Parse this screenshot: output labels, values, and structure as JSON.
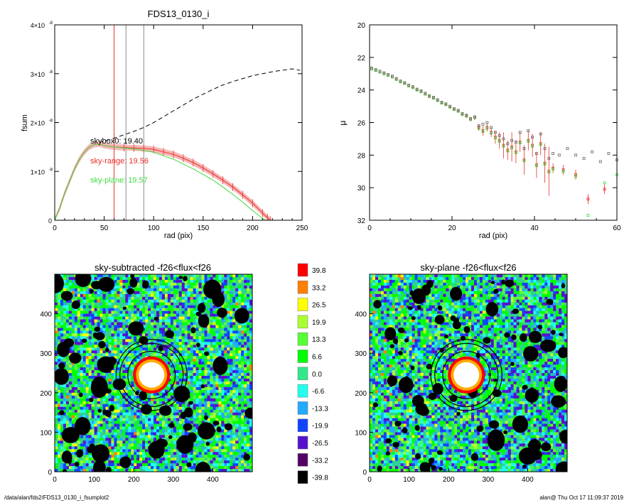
{
  "chart_data": [
    {
      "type": "line",
      "title": "FDS13_0130_i",
      "xlabel": "rad (pix)",
      "ylabel": "fsum",
      "xlim": [
        0,
        250
      ],
      "ylim": [
        0,
        4e-08
      ],
      "xticks": [
        "0",
        "50",
        "100",
        "150",
        "200",
        "250"
      ],
      "yticks": [
        {
          "v": 0,
          "label": "0"
        },
        {
          "v": 1e-08,
          "label": "1×10",
          "exp": "-8"
        },
        {
          "v": 2e-08,
          "label": "2×10",
          "exp": "-8"
        },
        {
          "v": 3e-08,
          "label": "3×10",
          "exp": "-8"
        },
        {
          "v": 4e-08,
          "label": "4×10",
          "exp": "-8"
        }
      ],
      "vlines": [
        {
          "x": 60,
          "color": "#e8302a"
        },
        {
          "x": 72,
          "color": "#8a8a8a"
        },
        {
          "x": 90,
          "color": "#8a8a8a"
        }
      ],
      "annotations": [
        {
          "text": "skybox0: 19.40",
          "color": "#000000"
        },
        {
          "text": "sky-range: 19.56",
          "color": "#e8302a"
        },
        {
          "text": "sky-plane: 19.57",
          "color": "#3ddc3d"
        }
      ],
      "series": [
        {
          "style": "dashed",
          "color": "#000000",
          "x": [
            0,
            5,
            10,
            15,
            20,
            25,
            30,
            35,
            40,
            45,
            50,
            60,
            70,
            80,
            90,
            100,
            110,
            120,
            130,
            140,
            150,
            160,
            170,
            180,
            190,
            200,
            210,
            220,
            230,
            240,
            248
          ],
          "y": [
            0,
            2.5e-09,
            5.5e-09,
            8e-09,
            1.05e-08,
            1.25e-08,
            1.4e-08,
            1.5e-08,
            1.56e-08,
            1.6e-08,
            1.62e-08,
            1.68e-08,
            1.75e-08,
            1.82e-08,
            1.9e-08,
            2e-08,
            2.12e-08,
            2.24e-08,
            2.36e-08,
            2.48e-08,
            2.58e-08,
            2.68e-08,
            2.77e-08,
            2.84e-08,
            2.9e-08,
            2.96e-08,
            3e-08,
            3.04e-08,
            3.07e-08,
            3.1e-08,
            3.07e-08
          ]
        },
        {
          "style": "solid",
          "color": "#e8302a",
          "band": true,
          "x": [
            0,
            5,
            10,
            15,
            20,
            25,
            30,
            35,
            40,
            45,
            50,
            60,
            70,
            80,
            90,
            100,
            110,
            120,
            130,
            140,
            150,
            160,
            170,
            180,
            190,
            200,
            210,
            215,
            218
          ],
          "y": [
            0,
            2.5e-09,
            5.5e-09,
            8e-09,
            1.05e-08,
            1.25e-08,
            1.4e-08,
            1.5e-08,
            1.55e-08,
            1.56e-08,
            1.53e-08,
            1.5e-08,
            1.49e-08,
            1.48e-08,
            1.47e-08,
            1.45e-08,
            1.4e-08,
            1.35e-08,
            1.27e-08,
            1.18e-08,
            1.07e-08,
            9.5e-09,
            8.2e-09,
            6.8e-09,
            5.2e-09,
            3.5e-09,
            1.5e-09,
            5e-10,
            0
          ]
        },
        {
          "style": "solid",
          "color": "#3ddc3d",
          "x": [
            0,
            5,
            10,
            15,
            20,
            25,
            30,
            35,
            40,
            45,
            50,
            60,
            70,
            80,
            90,
            100,
            110,
            120,
            130,
            140,
            150,
            160,
            170,
            180,
            190,
            200,
            208,
            213
          ],
          "y": [
            0,
            2.5e-09,
            5.5e-09,
            8e-09,
            1.05e-08,
            1.25e-08,
            1.4e-08,
            1.5e-08,
            1.55e-08,
            1.56e-08,
            1.53e-08,
            1.5e-08,
            1.48e-08,
            1.46e-08,
            1.43e-08,
            1.39e-08,
            1.32e-08,
            1.25e-08,
            1.15e-08,
            1.05e-08,
            9.4e-09,
            8.2e-09,
            6.8e-09,
            5.3e-09,
            3.7e-09,
            2e-09,
            7e-10,
            0
          ]
        }
      ]
    },
    {
      "type": "scatter",
      "xlabel": "rad (pix)",
      "ylabel": "μ",
      "xlim": [
        0,
        60
      ],
      "ylim": [
        32,
        20
      ],
      "xticks": [
        "0",
        "20",
        "40",
        "60"
      ],
      "yticks": [
        "20",
        "22",
        "24",
        "26",
        "28",
        "30",
        "32"
      ],
      "series": [
        {
          "color": "#e8302a",
          "x": [
            0.5,
            1.5,
            2.5,
            3.5,
            4.5,
            5.5,
            6.5,
            7.5,
            8.5,
            9.5,
            10.5,
            11.5,
            12.5,
            13.5,
            14.5,
            15.5,
            16.5,
            17.5,
            18.5,
            19.5,
            20.5,
            21.5,
            22.5,
            23.5,
            24.5,
            25.5,
            26.5,
            27.5,
            28.5,
            29.5,
            30.5,
            31.5,
            32.5,
            33.5,
            34.5,
            35.5,
            36.5,
            37.5,
            38.5,
            39.5,
            40.5,
            41.5,
            42.5,
            43.5,
            44.5,
            47,
            50,
            53,
            57
          ],
          "y": [
            22.7,
            22.8,
            22.9,
            23.0,
            23.1,
            23.2,
            23.35,
            23.5,
            23.6,
            23.75,
            23.85,
            24.0,
            24.1,
            24.25,
            24.4,
            24.5,
            24.65,
            24.8,
            24.9,
            25.05,
            25.2,
            25.3,
            25.5,
            25.6,
            25.8,
            25.7,
            26.3,
            26.5,
            26.3,
            26.6,
            26.9,
            27.1,
            27.4,
            27.7,
            27.5,
            27.8,
            27.2,
            28.3,
            27.1,
            27.4,
            28.6,
            27.3,
            28.5,
            29.0,
            28.8,
            28.9,
            29.2,
            30.7,
            30.1
          ],
          "err": [
            0.02,
            0.02,
            0.02,
            0.02,
            0.03,
            0.03,
            0.03,
            0.03,
            0.04,
            0.04,
            0.04,
            0.05,
            0.05,
            0.05,
            0.06,
            0.06,
            0.07,
            0.07,
            0.08,
            0.08,
            0.09,
            0.1,
            0.1,
            0.12,
            0.13,
            0.14,
            0.2,
            0.3,
            0.25,
            0.3,
            0.4,
            0.5,
            0.8,
            0.6,
            0.9,
            0.7,
            0.6,
            0.9,
            0.6,
            0.7,
            0.8,
            0.7,
            1.2,
            1.5,
            0.3,
            0.3,
            0.3,
            0.3,
            0.3
          ]
        },
        {
          "color": "#3ddc3d",
          "x": [
            0.5,
            1.5,
            2.5,
            3.5,
            4.5,
            5.5,
            6.5,
            7.5,
            8.5,
            9.5,
            10.5,
            11.5,
            12.5,
            13.5,
            14.5,
            15.5,
            16.5,
            17.5,
            18.5,
            19.5,
            20.5,
            21.5,
            22.5,
            23.5,
            24.5,
            25.5,
            26.5,
            27.5,
            28.5,
            29.5,
            30.5,
            31.5,
            32.5,
            33.5,
            34.5,
            35.5,
            36.5,
            37.5,
            38.5,
            39.5,
            40.5,
            41.5,
            42.5,
            43.5,
            44.5,
            47,
            50,
            53,
            57,
            60
          ],
          "y": [
            22.7,
            22.8,
            22.9,
            23.0,
            23.1,
            23.2,
            23.35,
            23.5,
            23.6,
            23.75,
            23.85,
            24.0,
            24.1,
            24.25,
            24.4,
            24.5,
            24.65,
            24.8,
            24.9,
            25.05,
            25.2,
            25.3,
            25.5,
            25.6,
            25.8,
            25.7,
            26.35,
            26.55,
            26.35,
            26.65,
            26.95,
            27.15,
            27.45,
            27.75,
            27.55,
            27.85,
            27.25,
            28.35,
            27.15,
            27.45,
            28.65,
            27.35,
            28.55,
            29.05,
            28.85,
            29.0,
            29.3,
            31.7,
            29.7,
            29.2
          ]
        },
        {
          "color": "#666666",
          "x": [
            0.5,
            1.5,
            2.5,
            3.5,
            4.5,
            5.5,
            6.5,
            7.5,
            8.5,
            9.5,
            10.5,
            11.5,
            12.5,
            13.5,
            14.5,
            15.5,
            16.5,
            17.5,
            18.5,
            19.5,
            20.5,
            21.5,
            22.5,
            23.5,
            24.5,
            25.5,
            26.5,
            27.5,
            28.5,
            29.5,
            30.5,
            31.5,
            32.5,
            33.5,
            34.5,
            35.5,
            36.5,
            37.5,
            38.5,
            39.5,
            40.5,
            41.5,
            42.5,
            43.5,
            44.5,
            46,
            48,
            50,
            52,
            54,
            56,
            58,
            60
          ],
          "y": [
            22.65,
            22.75,
            22.85,
            22.95,
            23.05,
            23.15,
            23.3,
            23.45,
            23.55,
            23.7,
            23.8,
            23.95,
            24.05,
            24.2,
            24.35,
            24.45,
            24.6,
            24.75,
            24.85,
            25.0,
            25.15,
            25.25,
            25.45,
            25.55,
            25.75,
            25.65,
            26.2,
            26.1,
            26.0,
            26.3,
            26.6,
            26.8,
            27.0,
            27.3,
            27.1,
            27.2,
            26.6,
            27.6,
            26.5,
            26.9,
            27.9,
            26.7,
            27.6,
            28.2,
            27.9,
            28.0,
            27.6,
            28.0,
            28.2,
            27.8,
            28.4,
            27.9,
            28.3
          ]
        }
      ]
    },
    {
      "type": "heatmap",
      "title": "sky-subtracted -f26<flux<f26",
      "xlim": [
        0,
        500
      ],
      "ylim": [
        0,
        500
      ],
      "xticks": [
        "0",
        "100",
        "200",
        "300",
        "400"
      ],
      "yticks": [
        "0",
        "100",
        "200",
        "300",
        "400"
      ],
      "circles_radius": [
        60,
        80,
        90
      ],
      "center": [
        245,
        245
      ]
    },
    {
      "type": "heatmap",
      "title": "sky-plane -f26<flux<f26",
      "xlim": [
        0,
        500
      ],
      "ylim": [
        0,
        500
      ],
      "xticks": [
        "0",
        "100",
        "200",
        "300",
        "400"
      ],
      "yticks": [
        "0",
        "100",
        "200",
        "300",
        "400"
      ],
      "circles_radius": [
        60,
        80,
        90
      ],
      "center": [
        245,
        245
      ]
    }
  ],
  "colorbar": {
    "labels": [
      "39.8",
      "33.2",
      "26.5",
      "19.9",
      "13.3",
      "6.6",
      "0.0",
      "-6.6",
      "-13.3",
      "-19.9",
      "-26.5",
      "-33.2",
      "-39.8"
    ],
    "colors": [
      "#ff0000",
      "#ff8000",
      "#ffff00",
      "#aaff33",
      "#55ff33",
      "#00ff00",
      "#33e88a",
      "#22ffee",
      "#22aaff",
      "#1144ff",
      "#5511cc",
      "#550066",
      "#000000"
    ]
  },
  "footer": {
    "path": "/data/alan/fds2/FDS13_0130_i_fsumplot2",
    "stamp": "alan@  Thu Oct 17 11:09:37 2019"
  }
}
